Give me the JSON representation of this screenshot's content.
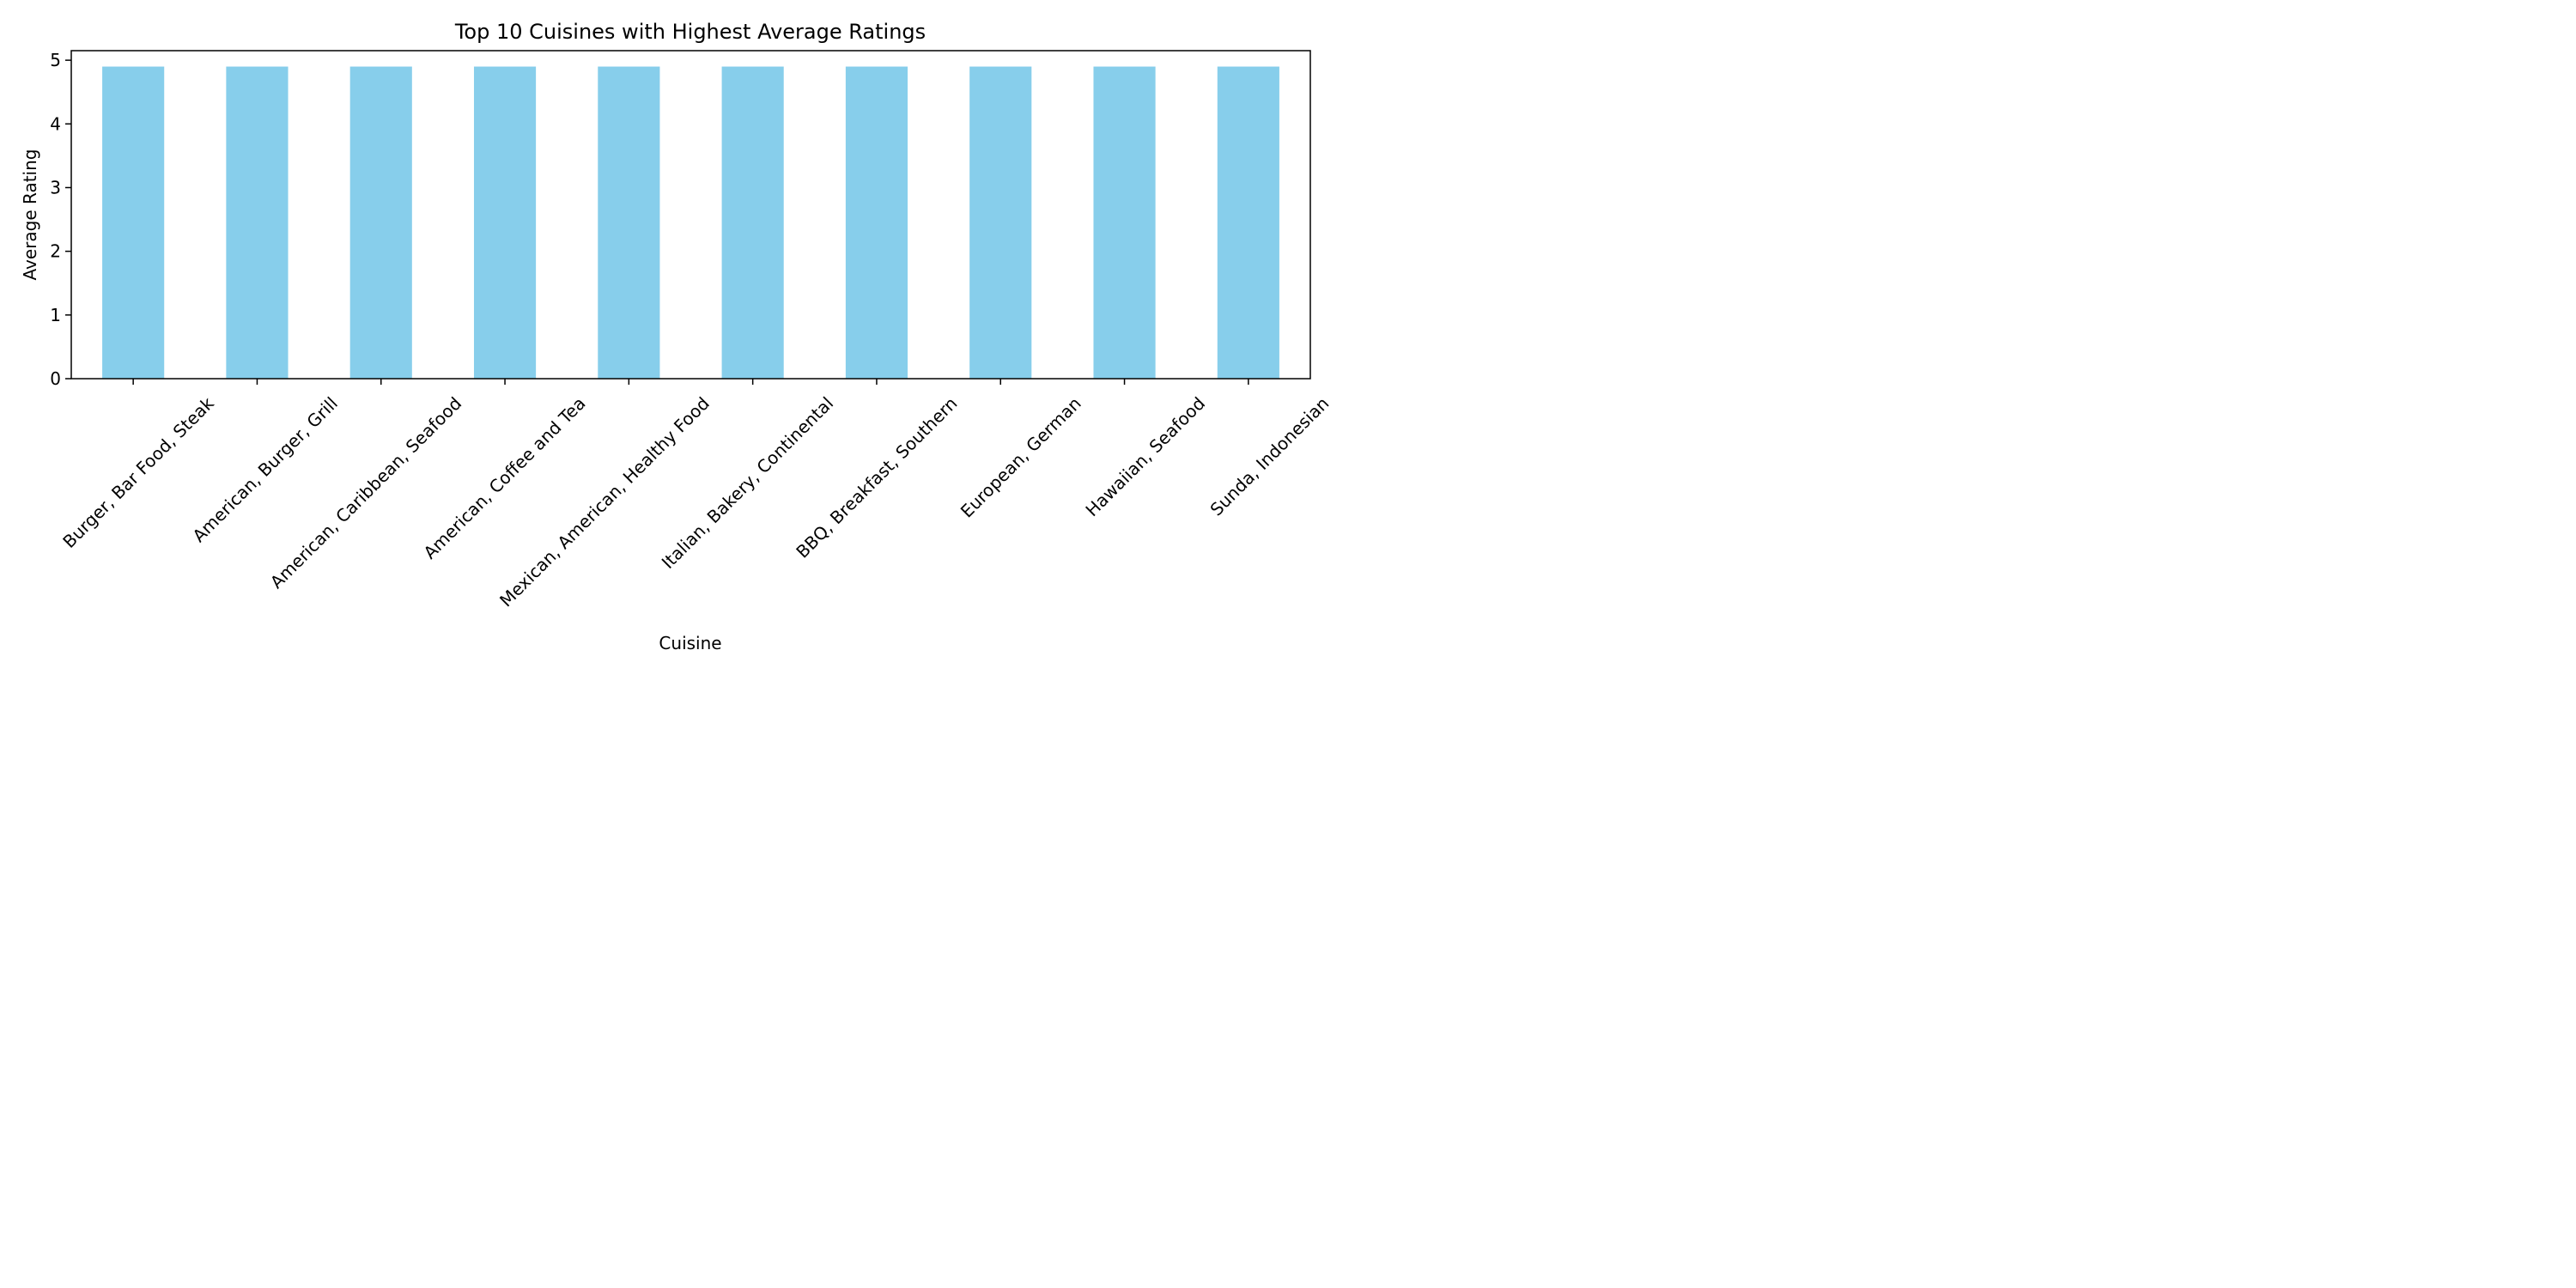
{
  "chart_data": {
    "type": "bar",
    "title": "Top 10 Cuisines with Highest Average Ratings",
    "xlabel": "Cuisine",
    "ylabel": "Average Rating",
    "categories": [
      "Burger, Bar Food, Steak",
      "American, Burger, Grill",
      "American, Caribbean, Seafood",
      "American, Coffee and Tea",
      "Mexican, American, Healthy Food",
      "Italian, Bakery, Continental",
      "BBQ, Breakfast, Southern",
      "European, German",
      "Hawaiian, Seafood",
      "Sunda, Indonesian"
    ],
    "values": [
      4.9,
      4.9,
      4.9,
      4.9,
      4.9,
      4.9,
      4.9,
      4.9,
      4.9,
      4.9
    ],
    "ylim": [
      0,
      5.15
    ],
    "yticks": [
      0,
      1,
      2,
      3,
      4,
      5
    ],
    "bar_color": "#87ceeb",
    "grid": false,
    "legend": "none"
  }
}
